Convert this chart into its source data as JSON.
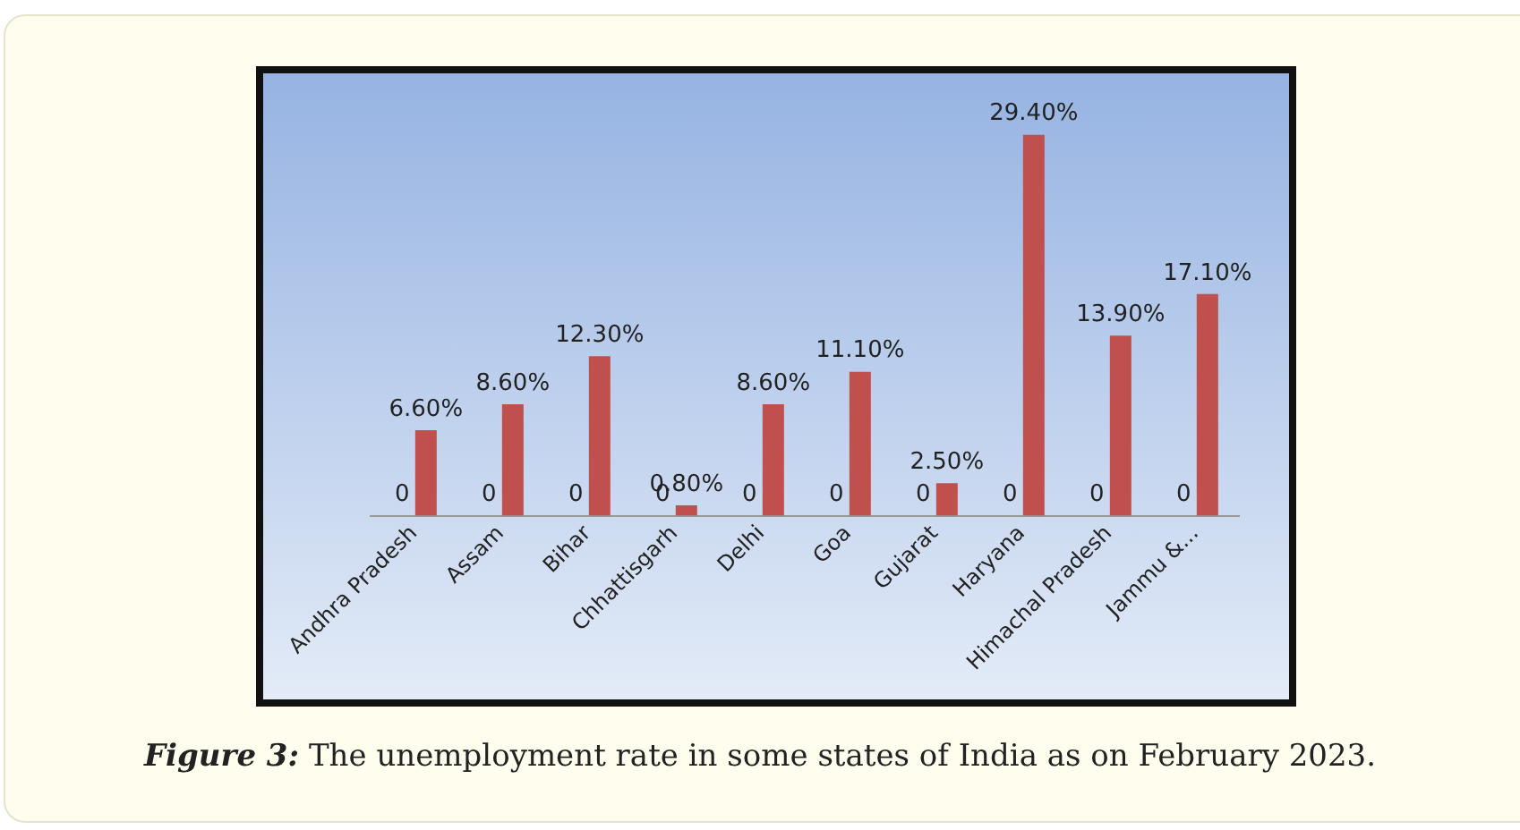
{
  "chart_data": {
    "type": "bar",
    "categories": [
      "Andhra Pradesh",
      "Assam",
      "Bihar",
      "Chhattisgarh",
      "Delhi",
      "Goa",
      "Gujarat",
      "Haryana",
      "Himachal Pradesh",
      "Jammu &..."
    ],
    "series": [
      {
        "color": "#c0504d",
        "values": [
          0,
          0,
          0,
          0,
          0,
          0,
          0,
          0,
          0,
          0
        ],
        "value_labels": [
          "0",
          "0",
          "0",
          "0",
          "0",
          "0",
          "0",
          "0",
          "0",
          "0"
        ]
      },
      {
        "color": "#c0504d",
        "values": [
          6.6,
          8.6,
          12.3,
          0.8,
          8.6,
          11.1,
          2.5,
          29.4,
          13.9,
          17.1
        ],
        "value_labels": [
          "6.60%",
          "8.60%",
          "12.30%",
          "0.80%",
          "8.60%",
          "11.10%",
          "2.50%",
          "29.40%",
          "13.90%",
          "17.10%"
        ]
      }
    ],
    "grid": false,
    "legend": false,
    "annotations": [
      "Figure 3:",
      "The unemployment rate in some states of India as on February 2023."
    ]
  }
}
